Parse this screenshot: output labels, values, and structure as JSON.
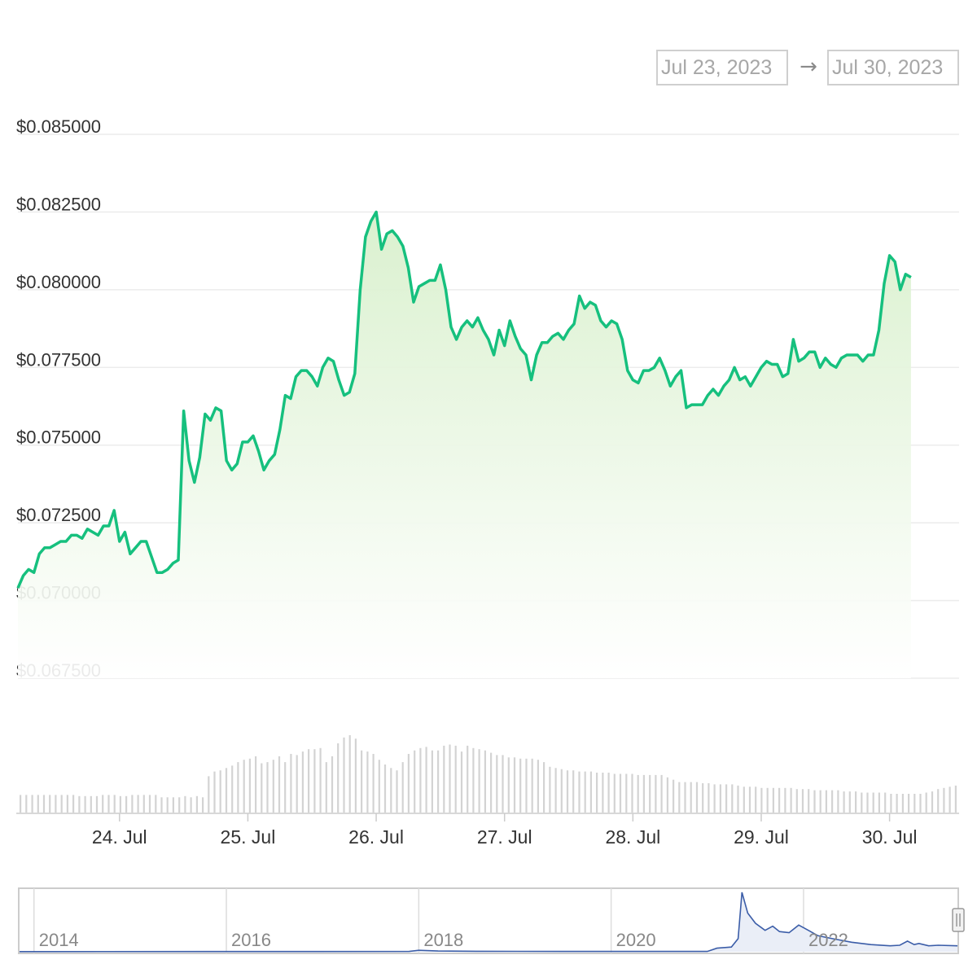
{
  "range_selector": {
    "from": "Jul 23, 2023",
    "to": "Jul 30, 2023",
    "arrow": "→"
  },
  "colors": {
    "line": "#16c07e",
    "area_top": "#d8f0cc",
    "volume": "#d3d3d3",
    "grid": "#ececec",
    "navigator_line": "#3b5da8",
    "navigator_fill": "#eaeef7"
  },
  "chart_data": {
    "type": "area",
    "title": "",
    "xlabel": "",
    "ylabel": "",
    "y_tick_labels": [
      "$0.067500",
      "$0.070000",
      "$0.072500",
      "$0.075000",
      "$0.077500",
      "$0.080000",
      "$0.082500",
      "$0.085000"
    ],
    "y_tick_values": [
      0.0675,
      0.07,
      0.0725,
      0.075,
      0.0775,
      0.08,
      0.0825,
      0.085
    ],
    "ylim": [
      0.0675,
      0.085
    ],
    "x_range_days": [
      "2023-07-23T05:00",
      "2023-07-30T13:00"
    ],
    "x_tick_labels": [
      "24. Jul",
      "25. Jul",
      "26. Jul",
      "27. Jul",
      "28. Jul",
      "29. Jul",
      "30. Jul"
    ],
    "x_tick_dates": [
      "2023-07-24",
      "2023-07-25",
      "2023-07-26",
      "2023-07-27",
      "2023-07-28",
      "2023-07-29",
      "2023-07-30"
    ],
    "grid": true,
    "legend": "none",
    "series": [
      {
        "name": "",
        "points": [
          [
            "2023-07-23 05:00",
            0.0704
          ],
          [
            "2023-07-23 06:00",
            0.0708
          ],
          [
            "2023-07-23 07:00",
            0.071
          ],
          [
            "2023-07-23 08:00",
            0.0709
          ],
          [
            "2023-07-23 09:00",
            0.0715
          ],
          [
            "2023-07-23 10:00",
            0.0717
          ],
          [
            "2023-07-23 11:00",
            0.0717
          ],
          [
            "2023-07-23 12:00",
            0.0718
          ],
          [
            "2023-07-23 13:00",
            0.0719
          ],
          [
            "2023-07-23 14:00",
            0.0719
          ],
          [
            "2023-07-23 15:00",
            0.0721
          ],
          [
            "2023-07-23 16:00",
            0.0721
          ],
          [
            "2023-07-23 17:00",
            0.072
          ],
          [
            "2023-07-23 18:00",
            0.0723
          ],
          [
            "2023-07-23 19:00",
            0.0722
          ],
          [
            "2023-07-23 20:00",
            0.0721
          ],
          [
            "2023-07-23 21:00",
            0.0724
          ],
          [
            "2023-07-23 22:00",
            0.0724
          ],
          [
            "2023-07-23 23:00",
            0.0729
          ],
          [
            "2023-07-24 00:00",
            0.0719
          ],
          [
            "2023-07-24 01:00",
            0.0722
          ],
          [
            "2023-07-24 02:00",
            0.0715
          ],
          [
            "2023-07-24 03:00",
            0.0717
          ],
          [
            "2023-07-24 04:00",
            0.0719
          ],
          [
            "2023-07-24 05:00",
            0.0719
          ],
          [
            "2023-07-24 06:00",
            0.0714
          ],
          [
            "2023-07-24 07:00",
            0.0709
          ],
          [
            "2023-07-24 08:00",
            0.0709
          ],
          [
            "2023-07-24 09:00",
            0.071
          ],
          [
            "2023-07-24 10:00",
            0.0712
          ],
          [
            "2023-07-24 11:00",
            0.0713
          ],
          [
            "2023-07-24 12:00",
            0.0761
          ],
          [
            "2023-07-24 13:00",
            0.0745
          ],
          [
            "2023-07-24 14:00",
            0.0738
          ],
          [
            "2023-07-24 15:00",
            0.0746
          ],
          [
            "2023-07-24 16:00",
            0.076
          ],
          [
            "2023-07-24 17:00",
            0.0758
          ],
          [
            "2023-07-24 18:00",
            0.0762
          ],
          [
            "2023-07-24 19:00",
            0.0761
          ],
          [
            "2023-07-24 20:00",
            0.0745
          ],
          [
            "2023-07-24 21:00",
            0.0742
          ],
          [
            "2023-07-24 22:00",
            0.0744
          ],
          [
            "2023-07-24 23:00",
            0.0751
          ],
          [
            "2023-07-25 00:00",
            0.0751
          ],
          [
            "2023-07-25 01:00",
            0.0753
          ],
          [
            "2023-07-25 02:00",
            0.0748
          ],
          [
            "2023-07-25 03:00",
            0.0742
          ],
          [
            "2023-07-25 04:00",
            0.0745
          ],
          [
            "2023-07-25 05:00",
            0.0747
          ],
          [
            "2023-07-25 06:00",
            0.0755
          ],
          [
            "2023-07-25 07:00",
            0.0766
          ],
          [
            "2023-07-25 08:00",
            0.0765
          ],
          [
            "2023-07-25 09:00",
            0.0772
          ],
          [
            "2023-07-25 10:00",
            0.0774
          ],
          [
            "2023-07-25 11:00",
            0.0774
          ],
          [
            "2023-07-25 12:00",
            0.0772
          ],
          [
            "2023-07-25 13:00",
            0.0769
          ],
          [
            "2023-07-25 14:00",
            0.0775
          ],
          [
            "2023-07-25 15:00",
            0.0778
          ],
          [
            "2023-07-25 16:00",
            0.0777
          ],
          [
            "2023-07-25 17:00",
            0.0771
          ],
          [
            "2023-07-25 18:00",
            0.0766
          ],
          [
            "2023-07-25 19:00",
            0.0767
          ],
          [
            "2023-07-25 20:00",
            0.0773
          ],
          [
            "2023-07-25 21:00",
            0.08
          ],
          [
            "2023-07-25 22:00",
            0.0817
          ],
          [
            "2023-07-25 23:00",
            0.0822
          ],
          [
            "2023-07-26 00:00",
            0.0825
          ],
          [
            "2023-07-26 01:00",
            0.0813
          ],
          [
            "2023-07-26 02:00",
            0.0818
          ],
          [
            "2023-07-26 03:00",
            0.0819
          ],
          [
            "2023-07-26 04:00",
            0.0817
          ],
          [
            "2023-07-26 05:00",
            0.0814
          ],
          [
            "2023-07-26 06:00",
            0.0807
          ],
          [
            "2023-07-26 07:00",
            0.0796
          ],
          [
            "2023-07-26 08:00",
            0.0801
          ],
          [
            "2023-07-26 09:00",
            0.0802
          ],
          [
            "2023-07-26 10:00",
            0.0803
          ],
          [
            "2023-07-26 11:00",
            0.0803
          ],
          [
            "2023-07-26 12:00",
            0.0808
          ],
          [
            "2023-07-26 13:00",
            0.08
          ],
          [
            "2023-07-26 14:00",
            0.0788
          ],
          [
            "2023-07-26 15:00",
            0.0784
          ],
          [
            "2023-07-26 16:00",
            0.0788
          ],
          [
            "2023-07-26 17:00",
            0.079
          ],
          [
            "2023-07-26 18:00",
            0.0788
          ],
          [
            "2023-07-26 19:00",
            0.0791
          ],
          [
            "2023-07-26 20:00",
            0.0787
          ],
          [
            "2023-07-26 21:00",
            0.0784
          ],
          [
            "2023-07-26 22:00",
            0.0779
          ],
          [
            "2023-07-26 23:00",
            0.0787
          ],
          [
            "2023-07-27 00:00",
            0.0782
          ],
          [
            "2023-07-27 01:00",
            0.079
          ],
          [
            "2023-07-27 02:00",
            0.0785
          ],
          [
            "2023-07-27 03:00",
            0.0781
          ],
          [
            "2023-07-27 04:00",
            0.0779
          ],
          [
            "2023-07-27 05:00",
            0.0771
          ],
          [
            "2023-07-27 06:00",
            0.0779
          ],
          [
            "2023-07-27 07:00",
            0.0783
          ],
          [
            "2023-07-27 08:00",
            0.0783
          ],
          [
            "2023-07-27 09:00",
            0.0785
          ],
          [
            "2023-07-27 10:00",
            0.0786
          ],
          [
            "2023-07-27 11:00",
            0.0784
          ],
          [
            "2023-07-27 12:00",
            0.0787
          ],
          [
            "2023-07-27 13:00",
            0.0789
          ],
          [
            "2023-07-27 14:00",
            0.0798
          ],
          [
            "2023-07-27 15:00",
            0.0794
          ],
          [
            "2023-07-27 16:00",
            0.0796
          ],
          [
            "2023-07-27 17:00",
            0.0795
          ],
          [
            "2023-07-27 18:00",
            0.079
          ],
          [
            "2023-07-27 19:00",
            0.0788
          ],
          [
            "2023-07-27 20:00",
            0.079
          ],
          [
            "2023-07-27 21:00",
            0.0789
          ],
          [
            "2023-07-27 22:00",
            0.0784
          ],
          [
            "2023-07-27 23:00",
            0.0774
          ],
          [
            "2023-07-28 00:00",
            0.0771
          ],
          [
            "2023-07-28 01:00",
            0.077
          ],
          [
            "2023-07-28 02:00",
            0.0774
          ],
          [
            "2023-07-28 03:00",
            0.0774
          ],
          [
            "2023-07-28 04:00",
            0.0775
          ],
          [
            "2023-07-28 05:00",
            0.0778
          ],
          [
            "2023-07-28 06:00",
            0.0774
          ],
          [
            "2023-07-28 07:00",
            0.0769
          ],
          [
            "2023-07-28 08:00",
            0.0772
          ],
          [
            "2023-07-28 09:00",
            0.0774
          ],
          [
            "2023-07-28 10:00",
            0.0762
          ],
          [
            "2023-07-28 11:00",
            0.0763
          ],
          [
            "2023-07-28 12:00",
            0.0763
          ],
          [
            "2023-07-28 13:00",
            0.0763
          ],
          [
            "2023-07-28 14:00",
            0.0766
          ],
          [
            "2023-07-28 15:00",
            0.0768
          ],
          [
            "2023-07-28 16:00",
            0.0766
          ],
          [
            "2023-07-28 17:00",
            0.0769
          ],
          [
            "2023-07-28 18:00",
            0.0771
          ],
          [
            "2023-07-28 19:00",
            0.0775
          ],
          [
            "2023-07-28 20:00",
            0.0771
          ],
          [
            "2023-07-28 21:00",
            0.0772
          ],
          [
            "2023-07-28 22:00",
            0.0769
          ],
          [
            "2023-07-28 23:00",
            0.0772
          ],
          [
            "2023-07-29 00:00",
            0.0775
          ],
          [
            "2023-07-29 01:00",
            0.0777
          ],
          [
            "2023-07-29 02:00",
            0.0776
          ],
          [
            "2023-07-29 03:00",
            0.0776
          ],
          [
            "2023-07-29 04:00",
            0.0772
          ],
          [
            "2023-07-29 05:00",
            0.0773
          ],
          [
            "2023-07-29 06:00",
            0.0784
          ],
          [
            "2023-07-29 07:00",
            0.0777
          ],
          [
            "2023-07-29 08:00",
            0.0778
          ],
          [
            "2023-07-29 09:00",
            0.078
          ],
          [
            "2023-07-29 10:00",
            0.078
          ],
          [
            "2023-07-29 11:00",
            0.0775
          ],
          [
            "2023-07-29 12:00",
            0.0778
          ],
          [
            "2023-07-29 13:00",
            0.0776
          ],
          [
            "2023-07-29 14:00",
            0.0775
          ],
          [
            "2023-07-29 15:00",
            0.0778
          ],
          [
            "2023-07-29 16:00",
            0.0779
          ],
          [
            "2023-07-29 17:00",
            0.0779
          ],
          [
            "2023-07-29 18:00",
            0.0779
          ],
          [
            "2023-07-29 19:00",
            0.0777
          ],
          [
            "2023-07-29 20:00",
            0.0779
          ],
          [
            "2023-07-29 21:00",
            0.0779
          ],
          [
            "2023-07-29 22:00",
            0.0787
          ],
          [
            "2023-07-29 23:00",
            0.0802
          ],
          [
            "2023-07-30 00:00",
            0.0811
          ],
          [
            "2023-07-30 01:00",
            0.0809
          ],
          [
            "2023-07-30 02:00",
            0.08
          ],
          [
            "2023-07-30 03:00",
            0.0805
          ],
          [
            "2023-07-30 04:00",
            0.0804
          ]
        ]
      }
    ],
    "volume_relative": [
      0.3,
      0.3,
      0.3,
      0.3,
      0.3,
      0.3,
      0.3,
      0.3,
      0.3,
      0.3,
      0.28,
      0.28,
      0.28,
      0.28,
      0.3,
      0.3,
      0.3,
      0.28,
      0.28,
      0.3,
      0.3,
      0.3,
      0.3,
      0.3,
      0.26,
      0.26,
      0.26,
      0.26,
      0.28,
      0.26,
      0.28,
      0.26,
      0.62,
      0.7,
      0.72,
      0.76,
      0.8,
      0.86,
      0.9,
      0.92,
      0.96,
      0.84,
      0.86,
      0.9,
      0.96,
      0.86,
      1.0,
      0.98,
      1.04,
      1.08,
      1.08,
      1.1,
      0.86,
      0.96,
      1.18,
      1.28,
      1.32,
      1.26,
      1.06,
      1.04,
      1.0,
      0.9,
      0.82,
      0.76,
      0.72,
      0.86,
      1.0,
      1.06,
      1.1,
      1.12,
      1.06,
      1.06,
      1.14,
      1.16,
      1.14,
      1.04,
      1.14,
      1.1,
      1.08,
      1.06,
      1.02,
      0.98,
      0.98,
      0.94,
      0.94,
      0.92,
      0.92,
      0.92,
      0.9,
      0.86,
      0.78,
      0.76,
      0.74,
      0.72,
      0.72,
      0.7,
      0.7,
      0.7,
      0.68,
      0.68,
      0.68,
      0.66,
      0.66,
      0.66,
      0.66,
      0.64,
      0.64,
      0.64,
      0.64,
      0.64,
      0.6,
      0.56,
      0.52,
      0.52,
      0.52,
      0.52,
      0.5,
      0.5,
      0.48,
      0.48,
      0.48,
      0.48,
      0.46,
      0.44,
      0.44,
      0.44,
      0.42,
      0.42,
      0.42,
      0.42,
      0.42,
      0.42,
      0.4,
      0.4,
      0.4,
      0.38,
      0.38,
      0.38,
      0.38,
      0.38,
      0.36,
      0.36,
      0.36,
      0.34,
      0.34,
      0.34,
      0.34,
      0.34,
      0.32,
      0.32,
      0.32,
      0.32,
      0.32,
      0.32,
      0.34,
      0.36,
      0.4,
      0.42,
      0.44,
      0.46
    ],
    "navigator": {
      "x_tick_labels": [
        "2014",
        "2016",
        "2018",
        "2020",
        "2022"
      ],
      "x_tick_years": [
        2014,
        2016,
        2018,
        2020,
        2022
      ],
      "x_range_years": [
        2013.85,
        2023.6
      ],
      "relative_price": [
        [
          2013.85,
          0.003
        ],
        [
          2017.9,
          0.006
        ],
        [
          2018.0,
          0.025
        ],
        [
          2018.2,
          0.012
        ],
        [
          2018.6,
          0.008
        ],
        [
          2019.5,
          0.006
        ],
        [
          2020.5,
          0.005
        ],
        [
          2021.0,
          0.006
        ],
        [
          2021.1,
          0.06
        ],
        [
          2021.25,
          0.08
        ],
        [
          2021.32,
          0.22
        ],
        [
          2021.36,
          1.0
        ],
        [
          2021.42,
          0.65
        ],
        [
          2021.5,
          0.48
        ],
        [
          2021.6,
          0.36
        ],
        [
          2021.68,
          0.43
        ],
        [
          2021.75,
          0.34
        ],
        [
          2021.85,
          0.32
        ],
        [
          2021.95,
          0.45
        ],
        [
          2022.05,
          0.36
        ],
        [
          2022.15,
          0.27
        ],
        [
          2022.3,
          0.22
        ],
        [
          2022.5,
          0.16
        ],
        [
          2022.7,
          0.12
        ],
        [
          2022.9,
          0.1
        ],
        [
          2023.0,
          0.11
        ],
        [
          2023.08,
          0.18
        ],
        [
          2023.15,
          0.12
        ],
        [
          2023.2,
          0.14
        ],
        [
          2023.3,
          0.1
        ],
        [
          2023.4,
          0.11
        ],
        [
          2023.6,
          0.1
        ]
      ]
    }
  }
}
